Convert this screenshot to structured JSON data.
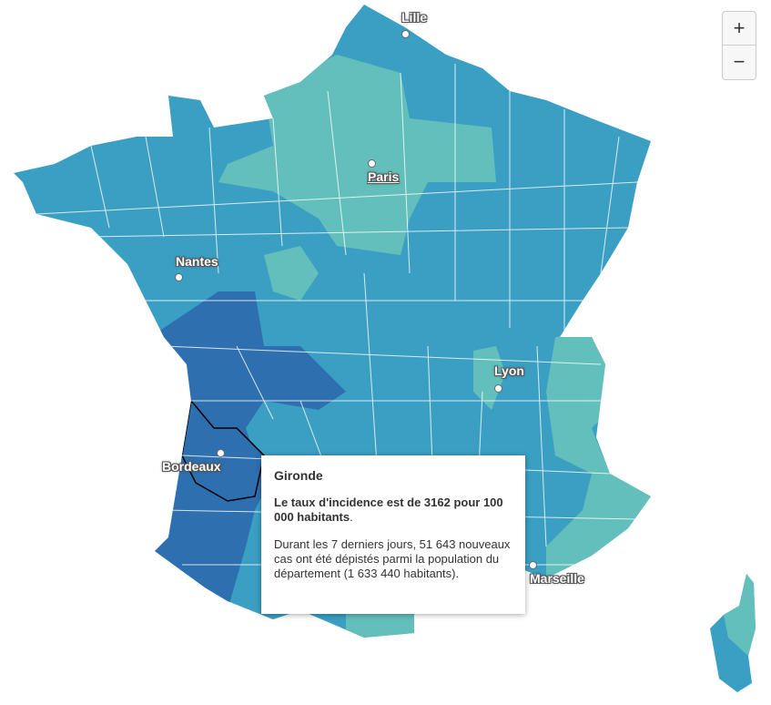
{
  "map": {
    "cities": [
      {
        "name": "Lille"
      },
      {
        "name": "Paris"
      },
      {
        "name": "Nantes"
      },
      {
        "name": "Lyon"
      },
      {
        "name": "Bordeaux"
      },
      {
        "name": "Marseille"
      }
    ],
    "zoom": {
      "in": "+",
      "out": "−"
    },
    "tooltip": {
      "title": "Gironde",
      "summary_strong": "Le taux d'incidence est de 3162 pour 100 000 habitants",
      "summary_end": ".",
      "detail": "Durant les 7 derniers jours, 51 643 nouveaux cas ont été dépistés parmi la population du département (1 633 440 habitants)."
    }
  }
}
